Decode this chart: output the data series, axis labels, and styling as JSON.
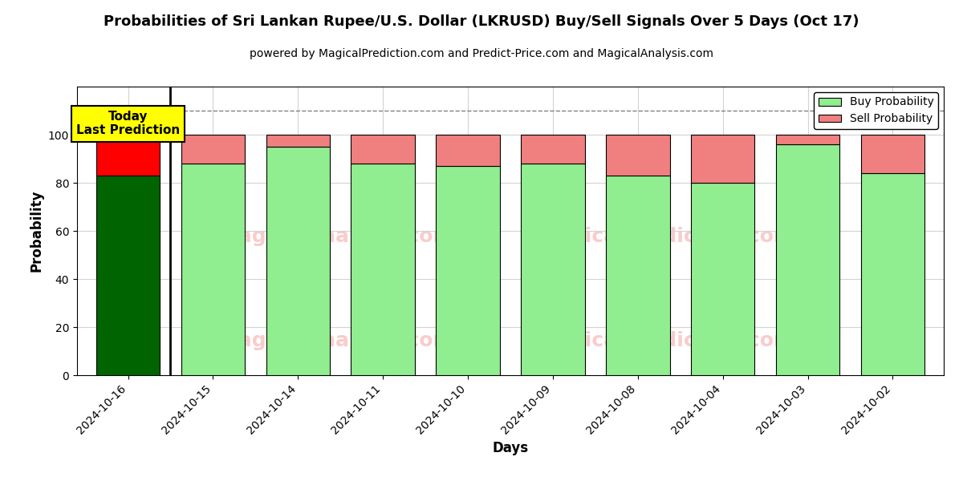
{
  "title": "Probabilities of Sri Lankan Rupee/U.S. Dollar (LKRUSD) Buy/Sell Signals Over 5 Days (Oct 17)",
  "subtitle": "powered by MagicalPrediction.com and Predict-Price.com and MagicalAnalysis.com",
  "xlabel": "Days",
  "ylabel": "Probability",
  "dates": [
    "2024-10-16",
    "2024-10-15",
    "2024-10-14",
    "2024-10-11",
    "2024-10-10",
    "2024-10-09",
    "2024-10-08",
    "2024-10-04",
    "2024-10-03",
    "2024-10-02"
  ],
  "buy_values": [
    83,
    88,
    95,
    88,
    87,
    88,
    83,
    80,
    96,
    84
  ],
  "sell_values": [
    17,
    12,
    5,
    12,
    13,
    12,
    17,
    20,
    4,
    16
  ],
  "today_index": 0,
  "today_buy_color": "#006400",
  "today_sell_color": "#ff0000",
  "buy_color": "#90EE90",
  "sell_color": "#f08080",
  "bar_edge_color": "#000000",
  "ylim": [
    0,
    120
  ],
  "yticks": [
    0,
    20,
    40,
    60,
    80,
    100
  ],
  "dashed_line_y": 110,
  "today_label_text": "Today\nLast Prediction",
  "today_label_bg": "#ffff00",
  "legend_buy_label": "Buy Probability",
  "legend_sell_label": "Sell Probability",
  "title_fontsize": 13,
  "subtitle_fontsize": 10,
  "label_fontsize": 12,
  "tick_fontsize": 10,
  "figsize": [
    12,
    6
  ],
  "dpi": 100
}
